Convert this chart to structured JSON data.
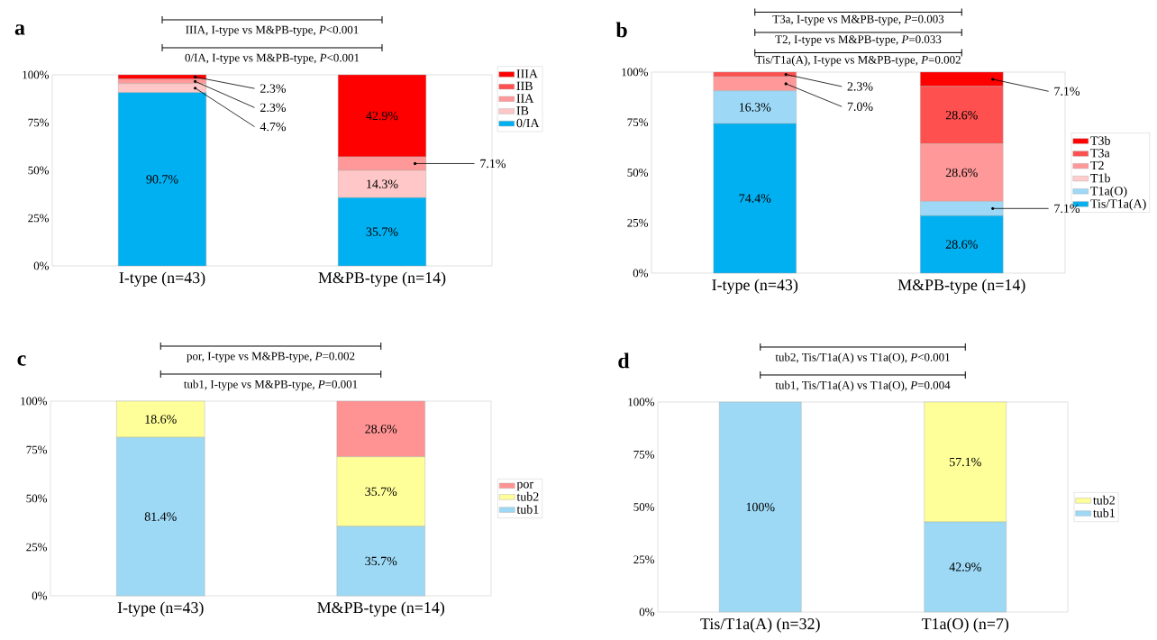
{
  "chart_data": [
    {
      "type": "bar",
      "stacked": true,
      "title": "a",
      "categories": [
        "I-type (n=43)",
        "M&PB-type (n=14)"
      ],
      "series": [
        {
          "name": "0/IA",
          "color": "#00b0f0",
          "values": [
            90.7,
            35.7
          ],
          "value_labels": [
            "90.7%",
            "35.7%"
          ]
        },
        {
          "name": "IB",
          "color": "#ffc7c7",
          "values": [
            4.7,
            14.3
          ],
          "value_labels": [
            "4.7%",
            "14.3%"
          ]
        },
        {
          "name": "IIA",
          "color": "#ff9999",
          "values": [
            2.3,
            7.1
          ],
          "value_labels": [
            "2.3%",
            "7.1%"
          ]
        },
        {
          "name": "IIB",
          "color": "#ff5050",
          "values": [
            0,
            0
          ],
          "value_labels": [
            null,
            null
          ]
        },
        {
          "name": "IIIA",
          "color": "#ff0000",
          "values": [
            2.3,
            42.9
          ],
          "value_labels": [
            "2.3%",
            "42.9%"
          ]
        }
      ],
      "ylim": [
        0,
        100
      ],
      "yticks": [
        {
          "value": 0,
          "label": "0%"
        },
        {
          "value": 25,
          "label": "25%"
        },
        {
          "value": 50,
          "label": "50%"
        },
        {
          "value": 75,
          "label": "75%"
        },
        {
          "value": 100,
          "label": "100%"
        }
      ],
      "legend": "top right",
      "annotations": [
        "IIIA, I-type vs M&PB-type, *P*<0.001",
        "0/IA, I-type vs M&PB-type, *P*<0.001"
      ]
    },
    {
      "type": "bar",
      "stacked": true,
      "title": "b",
      "categories": [
        "I-type (n=43)",
        "M&PB-type (n=14)"
      ],
      "series": [
        {
          "name": "Tis/T1a(A)",
          "color": "#00b0f0",
          "values": [
            74.4,
            28.6
          ],
          "value_labels": [
            "74.4%",
            "28.6%"
          ]
        },
        {
          "name": "T1a(O)",
          "color": "#9dd9f7",
          "values": [
            16.3,
            7.1
          ],
          "value_labels": [
            "16.3%",
            "7.1%"
          ]
        },
        {
          "name": "T1b",
          "color": "#ffcccc",
          "values": [
            0,
            0
          ],
          "value_labels": [
            null,
            null
          ]
        },
        {
          "name": "T2",
          "color": "#ff9999",
          "values": [
            7.0,
            28.6
          ],
          "value_labels": [
            "7.0%",
            "28.6%"
          ]
        },
        {
          "name": "T3a",
          "color": "#ff5050",
          "values": [
            2.3,
            28.6
          ],
          "value_labels": [
            "2.3%",
            "28.6%"
          ]
        },
        {
          "name": "T3b",
          "color": "#ff0000",
          "values": [
            0,
            7.1
          ],
          "value_labels": [
            null,
            "7.1%"
          ]
        }
      ],
      "ylim": [
        0,
        100
      ],
      "yticks": [
        {
          "value": 0,
          "label": "0%"
        },
        {
          "value": 25,
          "label": "25%"
        },
        {
          "value": 50,
          "label": "50%"
        },
        {
          "value": 75,
          "label": "75%"
        },
        {
          "value": 100,
          "label": "100%"
        }
      ],
      "legend": "right",
      "annotations": [
        "T3a, I-type vs M&PB-type, *P*=0.003",
        "T2, I-type vs M&PB-type, *P*=0.033",
        "Tis/T1a(A), I-type vs M&PB-type, *P*=0.002"
      ]
    },
    {
      "type": "bar",
      "stacked": true,
      "title": "c",
      "categories": [
        "I-type (n=43)",
        "M&PB-type (n=14)"
      ],
      "series": [
        {
          "name": "tub1",
          "color": "#9dd9f5",
          "values": [
            81.4,
            35.7
          ],
          "value_labels": [
            "81.4%",
            "35.7%"
          ]
        },
        {
          "name": "tub2",
          "color": "#ffff99",
          "values": [
            18.6,
            35.7
          ],
          "value_labels": [
            "18.6%",
            "35.7%"
          ]
        },
        {
          "name": "por",
          "color": "#ff9393",
          "values": [
            0,
            28.6
          ],
          "value_labels": [
            null,
            "28.6%"
          ]
        }
      ],
      "ylim": [
        0,
        100
      ],
      "yticks": [
        {
          "value": 0,
          "label": "0%"
        },
        {
          "value": 25,
          "label": "25%"
        },
        {
          "value": 50,
          "label": "50%"
        },
        {
          "value": 75,
          "label": "75%"
        },
        {
          "value": 100,
          "label": "100%"
        }
      ],
      "legend": "right",
      "annotations": [
        "por, I-type vs M&PB-type, *P*=0.002",
        "tub1, I-type vs M&PB-type, *P*=0.001"
      ]
    },
    {
      "type": "bar",
      "stacked": true,
      "title": "d",
      "categories": [
        "Tis/T1a(A) (n=32)",
        "T1a(O) (n=7)"
      ],
      "series": [
        {
          "name": "tub1",
          "color": "#9dd9f5",
          "values": [
            100,
            42.9
          ],
          "value_labels": [
            "100%",
            "42.9%"
          ]
        },
        {
          "name": "tub2",
          "color": "#ffff99",
          "values": [
            0,
            57.1
          ],
          "value_labels": [
            null,
            "57.1%"
          ]
        }
      ],
      "ylim": [
        0,
        100
      ],
      "yticks": [
        {
          "value": 0,
          "label": "0%"
        },
        {
          "value": 25,
          "label": "25%"
        },
        {
          "value": 50,
          "label": "50%"
        },
        {
          "value": 75,
          "label": "75%"
        },
        {
          "value": 100,
          "label": "100%"
        }
      ],
      "legend": "right",
      "annotations": [
        "tub2, Tis/T1a(A) vs T1a(O), *P*<0.001",
        "tub1, Tis/T1a(A) vs T1a(O), *P*=0.004"
      ]
    }
  ]
}
